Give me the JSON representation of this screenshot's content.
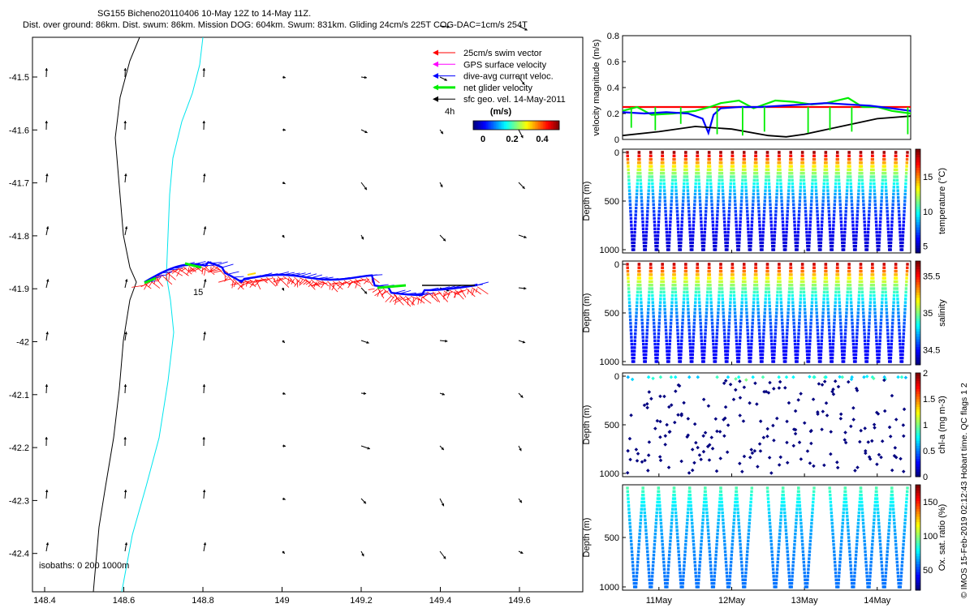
{
  "header": {
    "title": "SG155 Bicheno20110406 10-May 12Z to 14-May 11Z.",
    "stats": "Dist. over ground: 86km. Dist. swum: 86km. Mission DOG: 604km. Swum: 831km. Gliding 24cm/s 225T COG-DAC=1cm/s 254T"
  },
  "footer": {
    "credit": "© IMOS 15-Feb-2019 02:12:43 Hobart time. QC flags 1  2"
  },
  "colors": {
    "swim": "#ff0000",
    "gps": "#ff00ff",
    "dac": "#0000ff",
    "net": "#00ee00",
    "sfc": "#000000",
    "isobath_0": "#000000",
    "isobath_1000": "#00e5ee"
  },
  "map": {
    "legend": {
      "items": [
        {
          "label": "25cm/s swim vector",
          "color": "#ff0000"
        },
        {
          "label": "GPS surface velocity",
          "color": "#ff00ff"
        },
        {
          "label": "dive-avg current veloc.",
          "color": "#0000ff"
        },
        {
          "label": "net glider velocity",
          "color": "#00ee00"
        },
        {
          "label": "sfc geo. vel. 14-May-2011",
          "color": "#000000"
        }
      ],
      "interval": "4h",
      "colorbar_title": "(m/s)",
      "colorbar_ticks": [
        "0",
        "0.2",
        "0.4"
      ]
    },
    "isobath_note": "isobaths: 0   200  1000m",
    "track_label": "15",
    "xticks": [
      "148.4",
      "148.6",
      "148.8",
      "149",
      "149.2",
      "149.4",
      "149.6"
    ],
    "yticks": [
      "-41.5",
      "-41.6",
      "-41.7",
      "-41.8",
      "-41.9",
      "-42",
      "-42.1",
      "-42.2",
      "-42.3",
      "-42.4"
    ]
  },
  "chart_data": [
    {
      "type": "line",
      "ylabel": "velocity magnitude (m/s)",
      "ylim": [
        0,
        0.8
      ],
      "yticks": [
        "0",
        "0.2",
        "0.4",
        "0.6",
        "0.8"
      ],
      "xlim_days": [
        10.5,
        14.46
      ],
      "series": [
        {
          "name": "swim",
          "color": "#ff0000",
          "x": [
            10.5,
            14.46
          ],
          "values": [
            0.25,
            0.25
          ]
        },
        {
          "name": "net",
          "color": "#00ee00",
          "x": [
            10.5,
            10.7,
            10.9,
            11.2,
            11.5,
            11.7,
            11.85,
            12.1,
            12.3,
            12.6,
            12.85,
            13.1,
            13.3,
            13.6,
            13.8,
            14.0,
            14.2,
            14.46
          ],
          "values": [
            0.22,
            0.25,
            0.19,
            0.2,
            0.22,
            0.25,
            0.28,
            0.3,
            0.24,
            0.3,
            0.29,
            0.27,
            0.28,
            0.32,
            0.25,
            0.25,
            0.22,
            0.2
          ]
        },
        {
          "name": "dac",
          "color": "#0000ff",
          "x": [
            10.5,
            10.8,
            11.1,
            11.4,
            11.6,
            11.68,
            11.75,
            11.85,
            12.1,
            12.4,
            12.7,
            13.0,
            13.3,
            13.6,
            13.9,
            14.2,
            14.46
          ],
          "values": [
            0.21,
            0.2,
            0.21,
            0.2,
            0.16,
            0.05,
            0.19,
            0.24,
            0.25,
            0.25,
            0.26,
            0.27,
            0.28,
            0.27,
            0.26,
            0.24,
            0.22
          ]
        },
        {
          "name": "sfc",
          "color": "#000000",
          "x": [
            10.5,
            11.0,
            11.5,
            12.0,
            12.5,
            12.75,
            13.0,
            13.5,
            14.0,
            14.46
          ],
          "values": [
            0.03,
            0.06,
            0.1,
            0.08,
            0.03,
            0.02,
            0.04,
            0.1,
            0.16,
            0.18
          ]
        }
      ]
    },
    {
      "type": "scatter",
      "variable": "temperature",
      "ylabel": "Depth (m)",
      "clabel": "temperature (°C)",
      "ylim": [
        1000,
        0
      ],
      "yticks": [
        "0",
        "500",
        "1000"
      ],
      "clim": [
        4,
        19
      ],
      "cticks": [
        "5",
        "10",
        "15"
      ],
      "dives": 24,
      "max_depth": 1000,
      "surface_value": 18.5,
      "deep_value": 4.5
    },
    {
      "type": "scatter",
      "variable": "salinity",
      "ylabel": "Depth (m)",
      "clabel": "salinity",
      "ylim": [
        1000,
        0
      ],
      "yticks": [
        "0",
        "500",
        "1000"
      ],
      "clim": [
        34.3,
        35.7
      ],
      "cticks": [
        "34.5",
        "35",
        "35.5"
      ],
      "dives": 24,
      "max_depth": 1000,
      "surface_value": 35.6,
      "deep_value": 34.4
    },
    {
      "type": "scatter",
      "variable": "chl-a",
      "ylabel": "Depth (m)",
      "clabel": "chl-a (mg m-3)",
      "ylim": [
        1000,
        0
      ],
      "yticks": [
        "0",
        "500",
        "1000"
      ],
      "clim": [
        0,
        2
      ],
      "cticks": [
        "0",
        "0.5",
        "1",
        "1.5",
        "2"
      ],
      "dives": 24,
      "max_depth": 1000,
      "surface_value": 0.6,
      "deep_value": 0.02
    },
    {
      "type": "scatter",
      "variable": "oxygen",
      "ylabel": "Depth (m)",
      "clabel": "Ox. sat. ratio (%)",
      "ylim": [
        1000,
        0
      ],
      "yticks": [
        "500",
        "1000"
      ],
      "clim": [
        20,
        175
      ],
      "cticks": [
        "50",
        "100",
        "150"
      ],
      "dives": 18,
      "max_depth": 1000,
      "surface_value": 90,
      "deep_value": 55,
      "xticks": [
        "11May",
        "12May",
        "13May",
        "14May"
      ]
    }
  ]
}
